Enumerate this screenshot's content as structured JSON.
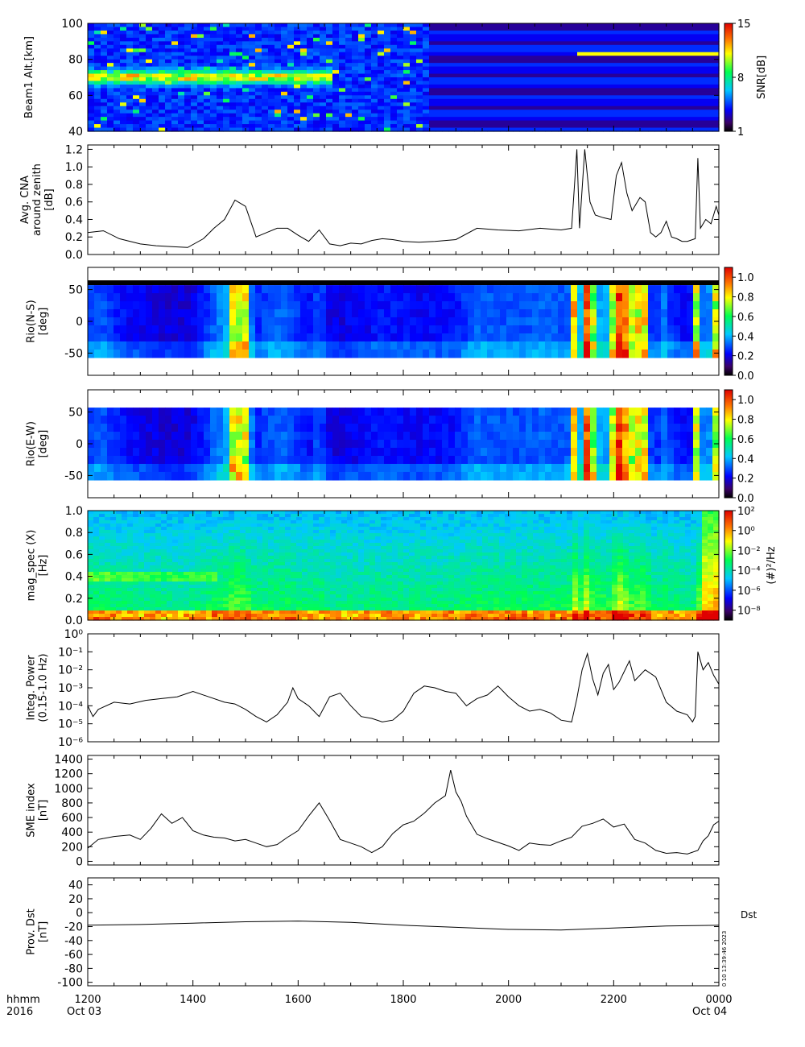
{
  "footer": {
    "label_left_1": "hhmm",
    "label_left_2": "2016",
    "date_start": "Oct 03",
    "date_end": "Oct 04"
  },
  "time_axis": {
    "ticks": [
      "1200",
      "1400",
      "1600",
      "1800",
      "2000",
      "2200",
      "0000"
    ],
    "range_hours": [
      12,
      24
    ]
  },
  "panel_stamp": "0 10 13:39:46 2023",
  "chart_data": [
    {
      "type": "heatmap",
      "title": "",
      "ylabel": "Beam1 Alt.[km]",
      "ylim": [
        40,
        100
      ],
      "yticks": [
        "100",
        "80",
        "60",
        "40"
      ],
      "colorbar": {
        "label": "SNR[dB]",
        "ticks": [
          "15",
          "8",
          "1"
        ],
        "range": [
          1,
          15
        ]
      },
      "features": [
        {
          "name": "echo_layer",
          "alt_km": 70,
          "start_hour": 12.0,
          "end_hour": 16.5
        },
        {
          "name": "flat_bands",
          "start_hour": 18.5,
          "end_hour": 24.0
        },
        {
          "name": "bright_line",
          "alt_km": 83,
          "start_hour": 21.3,
          "end_hour": 24.0
        }
      ]
    },
    {
      "type": "line",
      "ylabel": "Avg. CNA around zenith [dB]",
      "ylim": [
        0,
        1.25
      ],
      "yticks": [
        "0.0",
        "0.2",
        "0.4",
        "0.6",
        "0.8",
        "1.0",
        "1.2"
      ],
      "x": [
        12.0,
        12.3,
        12.6,
        13.0,
        13.3,
        13.6,
        13.9,
        14.2,
        14.4,
        14.6,
        14.8,
        15.0,
        15.2,
        15.4,
        15.6,
        15.8,
        16.0,
        16.2,
        16.4,
        16.6,
        16.8,
        17.0,
        17.2,
        17.4,
        17.6,
        17.8,
        18.0,
        18.3,
        18.6,
        19.0,
        19.4,
        19.8,
        20.2,
        20.6,
        21.0,
        21.2,
        21.3,
        21.35,
        21.45,
        21.55,
        21.65,
        21.8,
        21.95,
        22.05,
        22.15,
        22.25,
        22.35,
        22.5,
        22.6,
        22.7,
        22.8,
        22.9,
        23.0,
        23.1,
        23.2,
        23.3,
        23.4,
        23.55,
        23.6,
        23.65,
        23.75,
        23.85,
        23.95,
        24.0
      ],
      "values": [
        0.25,
        0.27,
        0.18,
        0.12,
        0.1,
        0.09,
        0.08,
        0.18,
        0.3,
        0.4,
        0.62,
        0.55,
        0.2,
        0.25,
        0.3,
        0.3,
        0.22,
        0.15,
        0.28,
        0.12,
        0.1,
        0.13,
        0.12,
        0.16,
        0.18,
        0.17,
        0.15,
        0.14,
        0.15,
        0.17,
        0.3,
        0.28,
        0.27,
        0.3,
        0.28,
        0.3,
        1.2,
        0.3,
        1.2,
        0.6,
        0.45,
        0.42,
        0.4,
        0.9,
        1.05,
        0.7,
        0.5,
        0.65,
        0.6,
        0.25,
        0.2,
        0.25,
        0.38,
        0.2,
        0.18,
        0.15,
        0.15,
        0.18,
        1.1,
        0.3,
        0.4,
        0.35,
        0.55,
        0.45
      ]
    },
    {
      "type": "heatmap",
      "ylabel": "Rio(N-S) [deg]",
      "ylim": [
        -85,
        85
      ],
      "yticks": [
        "50",
        "0",
        "-50"
      ],
      "colorbar": {
        "label": "",
        "ticks": [
          "1.0",
          "0.8",
          "0.6",
          "0.4",
          "0.2",
          "0.0"
        ],
        "range": [
          0,
          1.1
        ]
      }
    },
    {
      "type": "heatmap",
      "ylabel": "Rio(E-W) [deg]",
      "ylim": [
        -85,
        85
      ],
      "yticks": [
        "50",
        "0",
        "-50"
      ],
      "colorbar": {
        "label": "",
        "ticks": [
          "1.0",
          "0.8",
          "0.6",
          "0.4",
          "0.2",
          "0.0"
        ],
        "range": [
          0,
          1.1
        ]
      }
    },
    {
      "type": "heatmap",
      "ylabel": "mag_spec (X) [Hz]",
      "ylim": [
        0,
        1.0
      ],
      "yticks": [
        "1.0",
        "0.8",
        "0.6",
        "0.4",
        "0.2",
        "0.0"
      ],
      "colorbar": {
        "label": "(#)²/Hz",
        "ticks": [
          "10²",
          "10⁰",
          "10⁻²",
          "10⁻⁴",
          "10⁻⁶",
          "10⁻⁸"
        ],
        "range_log10": [
          -9,
          2
        ]
      }
    },
    {
      "type": "line",
      "ylabel": "Integ. Power (0.15-1.0 Hz)",
      "log_y": true,
      "ylim_log10": [
        -6,
        0
      ],
      "yticks": [
        "10⁰",
        "10⁻¹",
        "10⁻²",
        "10⁻³",
        "10⁻⁴",
        "10⁻⁵",
        "10⁻⁶"
      ],
      "x": [
        12.0,
        12.1,
        12.2,
        12.5,
        12.8,
        13.1,
        13.4,
        13.7,
        14.0,
        14.3,
        14.6,
        14.8,
        15.0,
        15.2,
        15.4,
        15.6,
        15.8,
        15.9,
        16.0,
        16.2,
        16.4,
        16.6,
        16.8,
        17.0,
        17.2,
        17.4,
        17.6,
        17.8,
        18.0,
        18.2,
        18.4,
        18.6,
        18.8,
        19.0,
        19.2,
        19.4,
        19.6,
        19.8,
        20.0,
        20.2,
        20.4,
        20.6,
        20.8,
        21.0,
        21.2,
        21.3,
        21.4,
        21.5,
        21.6,
        21.7,
        21.8,
        21.9,
        22.0,
        22.1,
        22.2,
        22.3,
        22.4,
        22.6,
        22.8,
        23.0,
        23.2,
        23.4,
        23.5,
        23.55,
        23.6,
        23.7,
        23.8,
        23.9,
        24.0
      ],
      "values_log10": [
        -4.0,
        -4.6,
        -4.2,
        -3.8,
        -3.9,
        -3.7,
        -3.6,
        -3.5,
        -3.2,
        -3.5,
        -3.8,
        -3.9,
        -4.2,
        -4.6,
        -4.9,
        -4.5,
        -3.8,
        -3.0,
        -3.6,
        -4.0,
        -4.6,
        -3.5,
        -3.3,
        -4.0,
        -4.6,
        -4.7,
        -4.9,
        -4.8,
        -4.3,
        -3.3,
        -2.9,
        -3.0,
        -3.2,
        -3.3,
        -4.0,
        -3.6,
        -3.4,
        -2.9,
        -3.5,
        -4.0,
        -4.3,
        -4.2,
        -4.4,
        -4.8,
        -4.9,
        -3.6,
        -2.0,
        -1.1,
        -2.5,
        -3.4,
        -2.2,
        -1.7,
        -3.1,
        -2.7,
        -2.1,
        -1.5,
        -2.6,
        -2.0,
        -2.4,
        -3.8,
        -4.3,
        -4.5,
        -4.9,
        -4.6,
        -1.0,
        -2.0,
        -1.6,
        -2.3,
        -2.8
      ]
    },
    {
      "type": "line",
      "ylabel": "SME index [nT]",
      "ylim": [
        -50,
        1450
      ],
      "yticks": [
        "1400",
        "1200",
        "1000",
        "800",
        "600",
        "400",
        "200",
        "0"
      ],
      "x": [
        12.0,
        12.2,
        12.5,
        12.8,
        13.0,
        13.2,
        13.4,
        13.6,
        13.8,
        14.0,
        14.2,
        14.4,
        14.6,
        14.8,
        15.0,
        15.2,
        15.4,
        15.6,
        15.8,
        16.0,
        16.2,
        16.4,
        16.6,
        16.8,
        17.0,
        17.2,
        17.4,
        17.6,
        17.8,
        18.0,
        18.2,
        18.4,
        18.6,
        18.8,
        18.9,
        19.0,
        19.1,
        19.2,
        19.4,
        19.6,
        19.8,
        20.0,
        20.2,
        20.4,
        20.6,
        20.8,
        21.0,
        21.2,
        21.4,
        21.6,
        21.8,
        22.0,
        22.2,
        22.4,
        22.6,
        22.8,
        23.0,
        23.2,
        23.4,
        23.6,
        23.7,
        23.8,
        23.9,
        24.0
      ],
      "values": [
        180,
        300,
        340,
        360,
        300,
        450,
        650,
        520,
        600,
        420,
        360,
        330,
        320,
        280,
        300,
        250,
        200,
        230,
        330,
        420,
        620,
        800,
        560,
        300,
        250,
        200,
        120,
        200,
        380,
        500,
        550,
        660,
        800,
        900,
        1250,
        950,
        820,
        620,
        370,
        310,
        260,
        210,
        150,
        250,
        230,
        220,
        280,
        330,
        480,
        520,
        580,
        470,
        510,
        300,
        250,
        150,
        110,
        120,
        100,
        150,
        280,
        350,
        500,
        550
      ]
    },
    {
      "type": "line",
      "ylabel": "Prov. Dst [nT]",
      "ylim": [
        -105,
        50
      ],
      "yticks": [
        "40",
        "20",
        "0",
        "-20",
        "-40",
        "-60",
        "-80",
        "-100"
      ],
      "legend": [
        "Dst"
      ],
      "x": [
        12.0,
        13.0,
        14.0,
        15.0,
        16.0,
        17.0,
        18.0,
        19.0,
        20.0,
        21.0,
        22.0,
        23.0,
        24.0
      ],
      "values": [
        -18,
        -17,
        -15,
        -13,
        -12,
        -14,
        -18,
        -21,
        -24,
        -25,
        -22,
        -19,
        -18
      ]
    }
  ]
}
